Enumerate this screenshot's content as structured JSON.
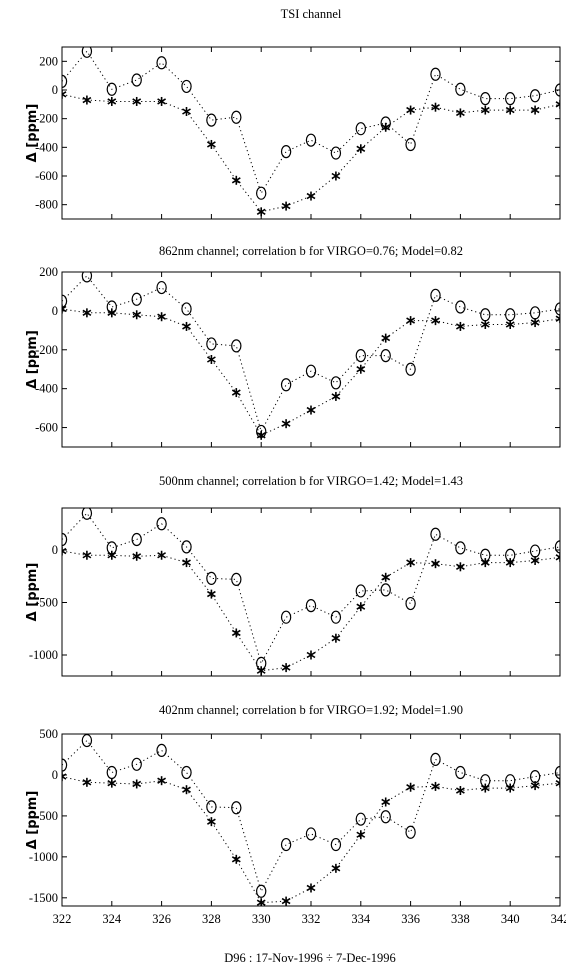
{
  "figure": {
    "xlabel": "D96 : 17-Nov-1996 ÷ 7-Dec-1996",
    "x_ticks": [
      322,
      324,
      326,
      328,
      330,
      332,
      334,
      336,
      338,
      340,
      342
    ]
  },
  "chart_data": [
    {
      "type": "line",
      "title": "TSI  channel",
      "ylabel": "Δ [ppm]",
      "ylim": [
        -900,
        300
      ],
      "xlim": [
        322,
        342
      ],
      "yticks": [
        200,
        0,
        -200,
        -400,
        -600,
        -800
      ],
      "x": [
        322,
        323,
        324,
        325,
        326,
        327,
        328,
        329,
        330,
        331,
        332,
        333,
        334,
        335,
        336,
        337,
        338,
        339,
        340,
        341,
        342
      ],
      "series": [
        {
          "marker": "circle",
          "values": [
            60,
            270,
            5,
            70,
            190,
            25,
            -210,
            -190,
            -720,
            -430,
            -350,
            -440,
            -270,
            -230,
            -380,
            110,
            5,
            -60,
            -60,
            -40,
            0
          ]
        },
        {
          "marker": "asterisk",
          "values": [
            -30,
            -70,
            -80,
            -80,
            -80,
            -150,
            -380,
            -630,
            -850,
            -810,
            -740,
            -600,
            -410,
            -260,
            -140,
            -120,
            -160,
            -140,
            -140,
            -140,
            -100
          ]
        }
      ]
    },
    {
      "type": "line",
      "title": "862nm channel; correlation b for VIRGO=0.76; Model=0.82",
      "ylabel": "Δ [ppm]",
      "ylim": [
        -700,
        200
      ],
      "xlim": [
        322,
        342
      ],
      "yticks": [
        200,
        0,
        -200,
        -400,
        -600
      ],
      "x": [
        322,
        323,
        324,
        325,
        326,
        327,
        328,
        329,
        330,
        331,
        332,
        333,
        334,
        335,
        336,
        337,
        338,
        339,
        340,
        341,
        342
      ],
      "series": [
        {
          "marker": "circle",
          "values": [
            50,
            180,
            20,
            60,
            120,
            10,
            -170,
            -180,
            -620,
            -380,
            -310,
            -370,
            -230,
            -230,
            -300,
            80,
            20,
            -20,
            -20,
            -10,
            10
          ]
        },
        {
          "marker": "asterisk",
          "values": [
            10,
            -10,
            -10,
            -20,
            -30,
            -80,
            -250,
            -420,
            -640,
            -580,
            -510,
            -440,
            -300,
            -140,
            -50,
            -50,
            -80,
            -70,
            -70,
            -60,
            -40
          ]
        }
      ]
    },
    {
      "type": "line",
      "title": "500nm channel; correlation b for VIRGO=1.42; Model=1.43",
      "ylabel": "Δ [ppm]",
      "ylim": [
        -1200,
        400
      ],
      "xlim": [
        322,
        342
      ],
      "yticks": [
        0,
        -500,
        -1000
      ],
      "x": [
        322,
        323,
        324,
        325,
        326,
        327,
        328,
        329,
        330,
        331,
        332,
        333,
        334,
        335,
        336,
        337,
        338,
        339,
        340,
        341,
        342
      ],
      "series": [
        {
          "marker": "circle",
          "values": [
            100,
            350,
            20,
            100,
            250,
            30,
            -270,
            -280,
            -1080,
            -640,
            -530,
            -640,
            -390,
            -380,
            -510,
            150,
            20,
            -50,
            -50,
            -10,
            30
          ]
        },
        {
          "marker": "asterisk",
          "values": [
            -10,
            -50,
            -50,
            -60,
            -50,
            -120,
            -420,
            -790,
            -1150,
            -1120,
            -1000,
            -840,
            -540,
            -260,
            -120,
            -130,
            -160,
            -120,
            -120,
            -100,
            -70
          ]
        }
      ]
    },
    {
      "type": "line",
      "title": "402nm channel; correlation b for VIRGO=1.92; Model=1.90",
      "ylabel": "Δ [ppm]",
      "ylim": [
        -1600,
        500
      ],
      "xlim": [
        322,
        342
      ],
      "yticks": [
        500,
        0,
        -500,
        -1000,
        -1500
      ],
      "x": [
        322,
        323,
        324,
        325,
        326,
        327,
        328,
        329,
        330,
        331,
        332,
        333,
        334,
        335,
        336,
        337,
        338,
        339,
        340,
        341,
        342
      ],
      "series": [
        {
          "marker": "circle",
          "values": [
            120,
            420,
            30,
            130,
            300,
            30,
            -390,
            -400,
            -1420,
            -850,
            -720,
            -850,
            -540,
            -510,
            -700,
            190,
            30,
            -70,
            -70,
            -20,
            30
          ]
        },
        {
          "marker": "asterisk",
          "values": [
            -20,
            -90,
            -100,
            -110,
            -70,
            -180,
            -570,
            -1030,
            -1560,
            -1540,
            -1380,
            -1140,
            -730,
            -330,
            -150,
            -140,
            -190,
            -160,
            -160,
            -130,
            -100
          ]
        }
      ]
    }
  ]
}
